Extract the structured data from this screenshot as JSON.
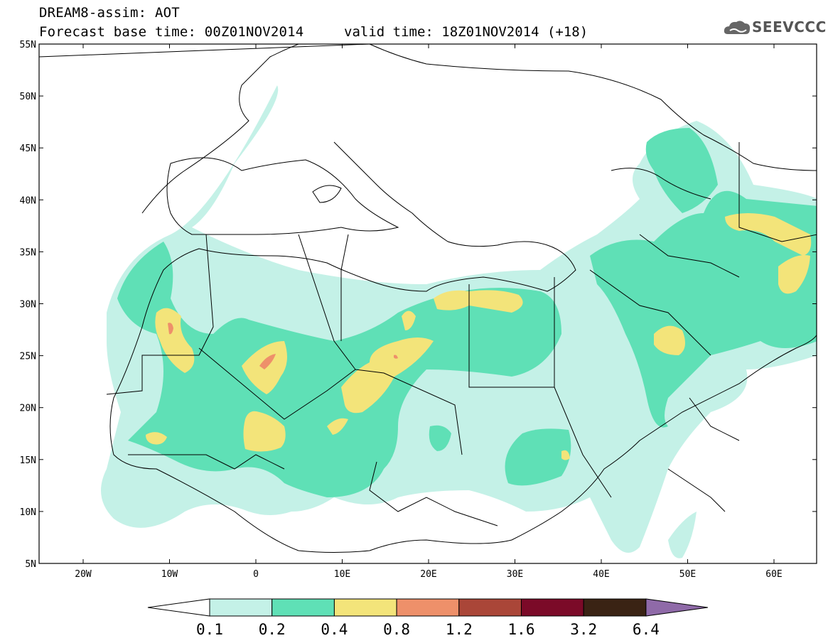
{
  "title": {
    "line1": "DREAM8-assim: AOT",
    "line2": "Forecast base time: 00Z01NOV2014",
    "valid": "valid time: 18Z01NOV2014 (+18)"
  },
  "logo": {
    "text": "SEEVCCC",
    "icon": "cloud-icon"
  },
  "axes": {
    "lat_labels": [
      "55N",
      "50N",
      "45N",
      "40N",
      "35N",
      "30N",
      "25N",
      "20N",
      "15N",
      "10N",
      "5N"
    ],
    "lon_labels": [
      "20W",
      "10W",
      "0",
      "10E",
      "20E",
      "30E",
      "40E",
      "50E",
      "60E"
    ]
  },
  "colorbar": {
    "labels": [
      "0.1",
      "0.2",
      "0.4",
      "0.8",
      "1.2",
      "1.6",
      "3.2",
      "6.4"
    ],
    "colors": [
      "#ffffff",
      "#c4f1e7",
      "#5fe0b6",
      "#f3e47a",
      "#ee906a",
      "#aa4638",
      "#7b0a28",
      "#3a2314",
      "#8f6aa8"
    ]
  }
}
